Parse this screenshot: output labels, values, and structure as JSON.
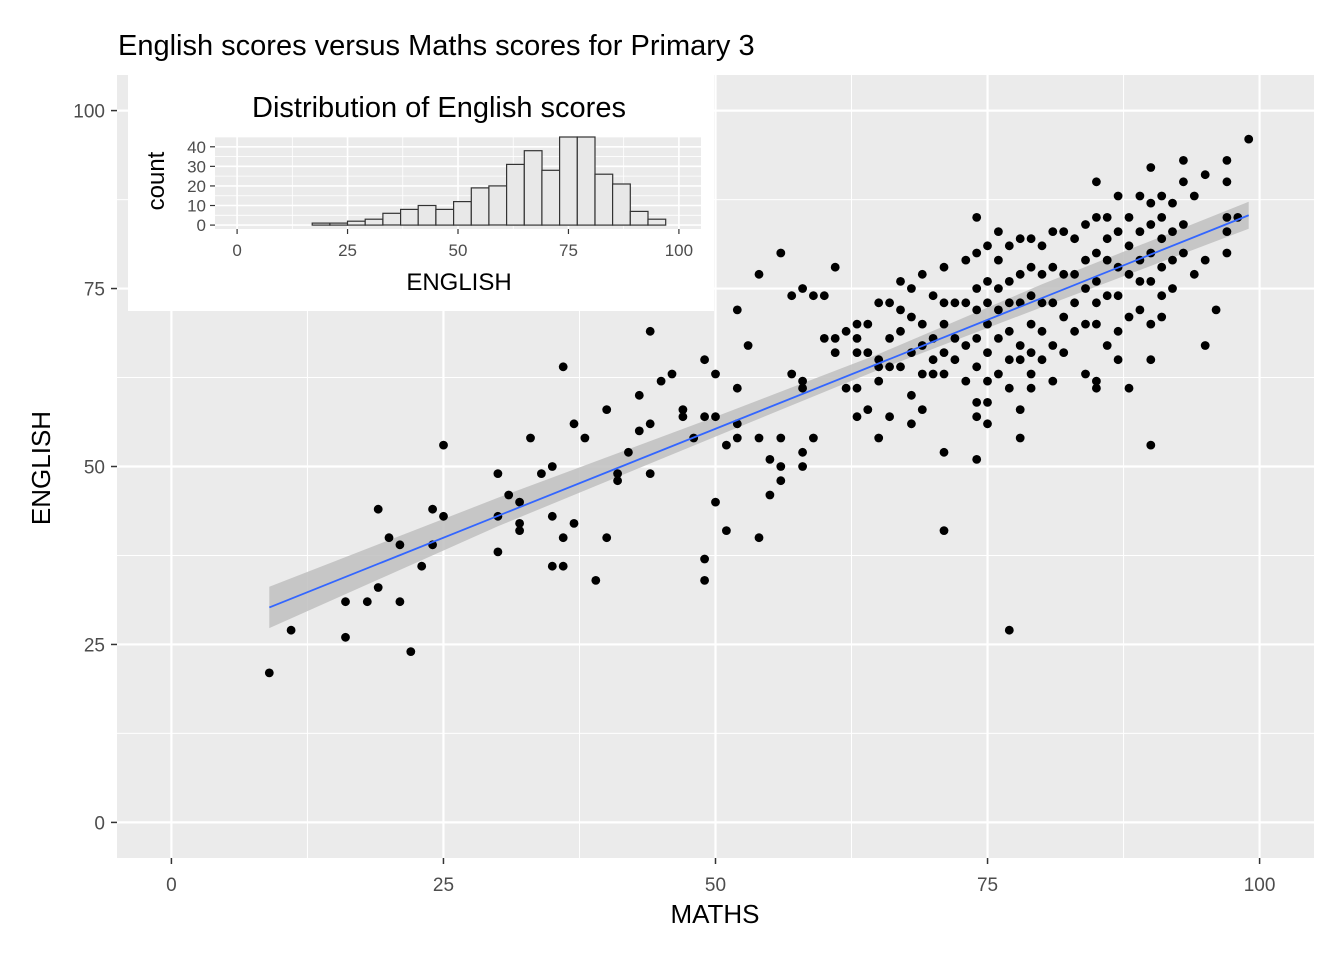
{
  "chart_data": [
    {
      "type": "scatter",
      "title": "English scores versus Maths scores for Primary 3",
      "xlabel": "MATHS",
      "ylabel": "ENGLISH",
      "xlim": [
        -5,
        105
      ],
      "ylim": [
        -5,
        105
      ],
      "xticks": [
        0,
        25,
        50,
        75,
        100
      ],
      "yticks": [
        0,
        25,
        50,
        75,
        100
      ],
      "grid": true,
      "background": "#ebebeb",
      "point_color": "#000000",
      "points": [
        [
          9,
          21
        ],
        [
          11,
          27
        ],
        [
          16,
          26
        ],
        [
          16,
          31
        ],
        [
          18,
          31
        ],
        [
          19,
          44
        ],
        [
          19,
          33
        ],
        [
          20,
          40
        ],
        [
          21,
          39
        ],
        [
          21,
          31
        ],
        [
          22,
          24
        ],
        [
          23,
          36
        ],
        [
          24,
          44
        ],
        [
          24,
          39
        ],
        [
          25,
          53
        ],
        [
          25,
          43
        ],
        [
          30,
          49
        ],
        [
          30,
          43
        ],
        [
          30,
          38
        ],
        [
          31,
          46
        ],
        [
          32,
          45
        ],
        [
          32,
          42
        ],
        [
          32,
          41
        ],
        [
          33,
          54
        ],
        [
          34,
          49
        ],
        [
          35,
          50
        ],
        [
          35,
          43
        ],
        [
          35,
          36
        ],
        [
          36,
          64
        ],
        [
          36,
          40
        ],
        [
          36,
          36
        ],
        [
          37,
          56
        ],
        [
          37,
          42
        ],
        [
          38,
          54
        ],
        [
          39,
          34
        ],
        [
          40,
          58
        ],
        [
          40,
          40
        ],
        [
          41,
          48
        ],
        [
          41,
          49
        ],
        [
          42,
          52
        ],
        [
          43,
          60
        ],
        [
          43,
          55
        ],
        [
          44,
          69
        ],
        [
          44,
          56
        ],
        [
          44,
          49
        ],
        [
          45,
          62
        ],
        [
          46,
          63
        ],
        [
          47,
          58
        ],
        [
          47,
          57
        ],
        [
          48,
          54
        ],
        [
          49,
          65
        ],
        [
          49,
          57
        ],
        [
          49,
          37
        ],
        [
          49,
          34
        ],
        [
          50,
          63
        ],
        [
          50,
          57
        ],
        [
          50,
          45
        ],
        [
          51,
          53
        ],
        [
          51,
          41
        ],
        [
          52,
          72
        ],
        [
          52,
          61
        ],
        [
          52,
          56
        ],
        [
          52,
          54
        ],
        [
          53,
          67
        ],
        [
          54,
          77
        ],
        [
          54,
          54
        ],
        [
          54,
          40
        ],
        [
          55,
          51
        ],
        [
          55,
          46
        ],
        [
          56,
          80
        ],
        [
          56,
          54
        ],
        [
          56,
          50
        ],
        [
          56,
          48
        ],
        [
          57,
          74
        ],
        [
          57,
          63
        ],
        [
          58,
          75
        ],
        [
          58,
          62
        ],
        [
          58,
          61
        ],
        [
          58,
          52
        ],
        [
          58,
          50
        ],
        [
          59,
          74
        ],
        [
          59,
          54
        ],
        [
          60,
          74
        ],
        [
          60,
          68
        ],
        [
          61,
          78
        ],
        [
          61,
          68
        ],
        [
          61,
          66
        ],
        [
          62,
          69
        ],
        [
          62,
          61
        ],
        [
          63,
          70
        ],
        [
          63,
          68
        ],
        [
          63,
          66
        ],
        [
          63,
          61
        ],
        [
          63,
          57
        ],
        [
          64,
          70
        ],
        [
          64,
          66
        ],
        [
          64,
          58
        ],
        [
          65,
          73
        ],
        [
          65,
          65
        ],
        [
          65,
          64
        ],
        [
          65,
          62
        ],
        [
          65,
          54
        ],
        [
          66,
          73
        ],
        [
          66,
          68
        ],
        [
          66,
          64
        ],
        [
          66,
          57
        ],
        [
          67,
          76
        ],
        [
          67,
          72
        ],
        [
          67,
          69
        ],
        [
          67,
          64
        ],
        [
          68,
          75
        ],
        [
          68,
          71
        ],
        [
          68,
          66
        ],
        [
          68,
          60
        ],
        [
          68,
          56
        ],
        [
          69,
          77
        ],
        [
          69,
          70
        ],
        [
          69,
          67
        ],
        [
          69,
          63
        ],
        [
          69,
          58
        ],
        [
          70,
          74
        ],
        [
          70,
          68
        ],
        [
          70,
          65
        ],
        [
          70,
          63
        ],
        [
          71,
          78
        ],
        [
          71,
          73
        ],
        [
          71,
          70
        ],
        [
          71,
          66
        ],
        [
          71,
          63
        ],
        [
          71,
          52
        ],
        [
          71,
          41
        ],
        [
          72,
          73
        ],
        [
          72,
          68
        ],
        [
          72,
          65
        ],
        [
          73,
          79
        ],
        [
          73,
          73
        ],
        [
          73,
          67
        ],
        [
          73,
          62
        ],
        [
          74,
          85
        ],
        [
          74,
          80
        ],
        [
          74,
          75
        ],
        [
          74,
          72
        ],
        [
          74,
          68
        ],
        [
          74,
          64
        ],
        [
          74,
          59
        ],
        [
          74,
          57
        ],
        [
          74,
          51
        ],
        [
          75,
          81
        ],
        [
          75,
          76
        ],
        [
          75,
          73
        ],
        [
          75,
          70
        ],
        [
          75,
          66
        ],
        [
          75,
          62
        ],
        [
          75,
          59
        ],
        [
          75,
          56
        ],
        [
          76,
          83
        ],
        [
          76,
          79
        ],
        [
          76,
          75
        ],
        [
          76,
          72
        ],
        [
          76,
          68
        ],
        [
          76,
          63
        ],
        [
          77,
          81
        ],
        [
          77,
          76
        ],
        [
          77,
          73
        ],
        [
          77,
          69
        ],
        [
          77,
          65
        ],
        [
          77,
          61
        ],
        [
          77,
          27
        ],
        [
          78,
          82
        ],
        [
          78,
          77
        ],
        [
          78,
          73
        ],
        [
          78,
          67
        ],
        [
          78,
          65
        ],
        [
          78,
          58
        ],
        [
          78,
          54
        ],
        [
          79,
          82
        ],
        [
          79,
          78
        ],
        [
          79,
          74
        ],
        [
          79,
          70
        ],
        [
          79,
          66
        ],
        [
          79,
          63
        ],
        [
          79,
          61
        ],
        [
          80,
          81
        ],
        [
          80,
          77
        ],
        [
          80,
          73
        ],
        [
          80,
          69
        ],
        [
          80,
          65
        ],
        [
          81,
          83
        ],
        [
          81,
          78
        ],
        [
          81,
          73
        ],
        [
          81,
          67
        ],
        [
          81,
          62
        ],
        [
          82,
          83
        ],
        [
          82,
          77
        ],
        [
          82,
          71
        ],
        [
          82,
          66
        ],
        [
          83,
          82
        ],
        [
          83,
          77
        ],
        [
          83,
          73
        ],
        [
          83,
          69
        ],
        [
          84,
          84
        ],
        [
          84,
          79
        ],
        [
          84,
          75
        ],
        [
          84,
          70
        ],
        [
          84,
          63
        ],
        [
          85,
          90
        ],
        [
          85,
          85
        ],
        [
          85,
          80
        ],
        [
          85,
          76
        ],
        [
          85,
          73
        ],
        [
          85,
          70
        ],
        [
          85,
          62
        ],
        [
          85,
          61
        ],
        [
          86,
          85
        ],
        [
          86,
          82
        ],
        [
          86,
          79
        ],
        [
          86,
          74
        ],
        [
          86,
          67
        ],
        [
          87,
          88
        ],
        [
          87,
          83
        ],
        [
          87,
          78
        ],
        [
          87,
          74
        ],
        [
          87,
          69
        ],
        [
          87,
          65
        ],
        [
          88,
          85
        ],
        [
          88,
          81
        ],
        [
          88,
          77
        ],
        [
          88,
          71
        ],
        [
          88,
          61
        ],
        [
          89,
          88
        ],
        [
          89,
          83
        ],
        [
          89,
          79
        ],
        [
          89,
          76
        ],
        [
          89,
          72
        ],
        [
          90,
          92
        ],
        [
          90,
          87
        ],
        [
          90,
          84
        ],
        [
          90,
          80
        ],
        [
          90,
          76
        ],
        [
          90,
          70
        ],
        [
          90,
          65
        ],
        [
          90,
          53
        ],
        [
          91,
          88
        ],
        [
          91,
          85
        ],
        [
          91,
          82
        ],
        [
          91,
          78
        ],
        [
          91,
          74
        ],
        [
          91,
          71
        ],
        [
          92,
          87
        ],
        [
          92,
          83
        ],
        [
          92,
          79
        ],
        [
          92,
          75
        ],
        [
          93,
          93
        ],
        [
          93,
          90
        ],
        [
          93,
          84
        ],
        [
          93,
          80
        ],
        [
          94,
          88
        ],
        [
          94,
          77
        ],
        [
          95,
          91
        ],
        [
          95,
          79
        ],
        [
          95,
          67
        ],
        [
          96,
          72
        ],
        [
          97,
          93
        ],
        [
          97,
          90
        ],
        [
          97,
          85
        ],
        [
          97,
          83
        ],
        [
          97,
          80
        ],
        [
          98,
          85
        ],
        [
          99,
          96
        ]
      ],
      "trend_line": {
        "x": [
          9,
          99
        ],
        "y": [
          30.2,
          85.3
        ],
        "color": "#3366ff"
      },
      "confidence_band": {
        "x": [
          9,
          30,
          50,
          65,
          80,
          99
        ],
        "lower": [
          27.3,
          41.6,
          54.2,
          63.6,
          72.4,
          83.4
        ],
        "upper": [
          33.1,
          45.6,
          57.0,
          65.8,
          75.6,
          87.2
        ],
        "color": "#c0c0c0"
      }
    },
    {
      "type": "bar",
      "title": "Distribution of English scores",
      "xlabel": "ENGLISH",
      "ylabel": "count",
      "xlim": [
        -5,
        105
      ],
      "ylim": [
        -2,
        45
      ],
      "xticks": [
        0,
        25,
        50,
        75,
        100
      ],
      "yticks": [
        0,
        10,
        20,
        30,
        40
      ],
      "bin_width": 4,
      "bins": [
        {
          "center": 19,
          "count": 1
        },
        {
          "center": 23,
          "count": 1
        },
        {
          "center": 27,
          "count": 2
        },
        {
          "center": 31,
          "count": 3
        },
        {
          "center": 35,
          "count": 6
        },
        {
          "center": 39,
          "count": 8
        },
        {
          "center": 43,
          "count": 10
        },
        {
          "center": 47,
          "count": 8
        },
        {
          "center": 51,
          "count": 12
        },
        {
          "center": 55,
          "count": 19
        },
        {
          "center": 59,
          "count": 20
        },
        {
          "center": 63,
          "count": 31
        },
        {
          "center": 67,
          "count": 38
        },
        {
          "center": 71,
          "count": 28
        },
        {
          "center": 75,
          "count": 45
        },
        {
          "center": 79,
          "count": 45
        },
        {
          "center": 83,
          "count": 26
        },
        {
          "center": 87,
          "count": 21
        },
        {
          "center": 91,
          "count": 7
        },
        {
          "center": 95,
          "count": 3
        }
      ],
      "bar_fill": "#e8e8e8",
      "bar_stroke": "#333333"
    }
  ]
}
